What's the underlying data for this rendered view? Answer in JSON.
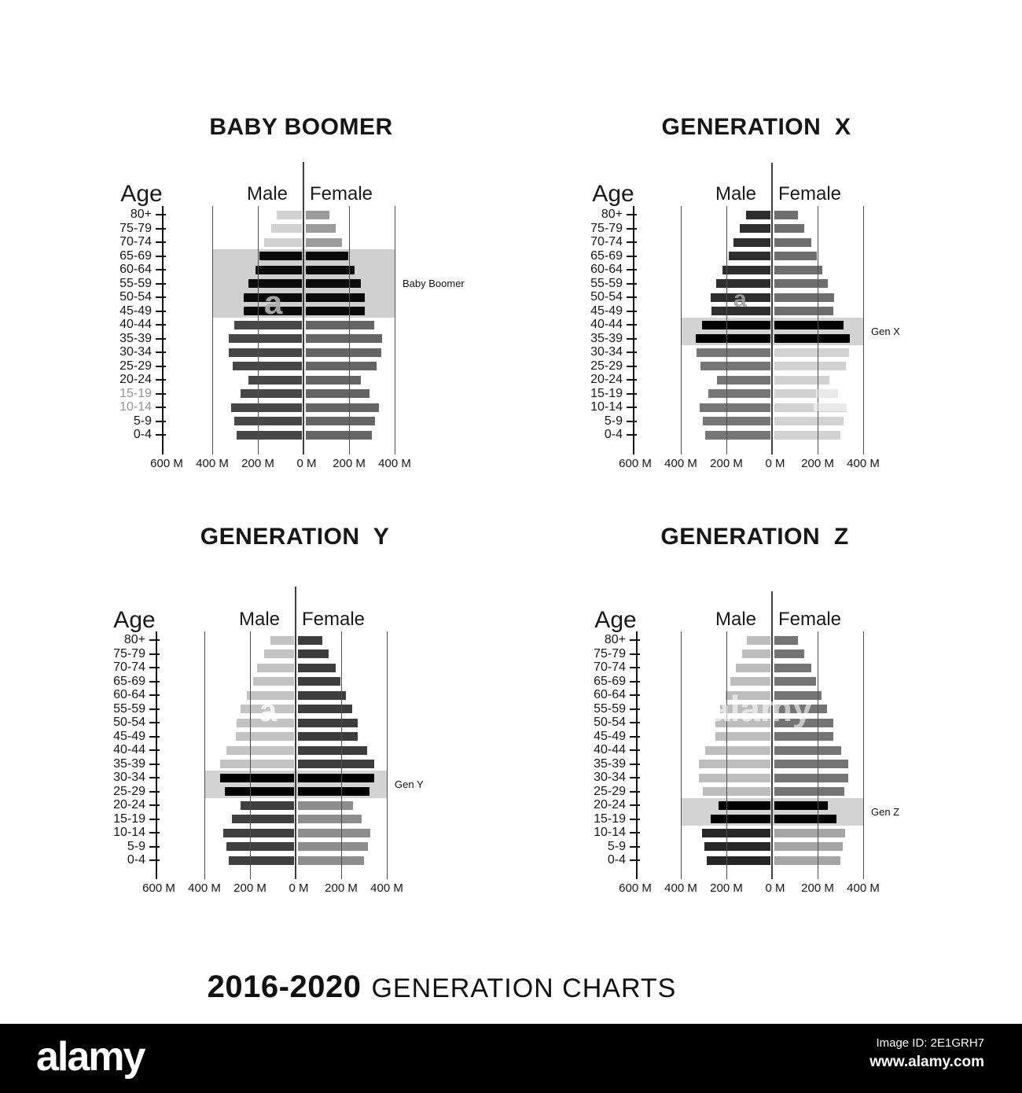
{
  "caption": {
    "years": "2016-2020",
    "title": "GENERATION CHARTS"
  },
  "footer": {
    "brand": "alamy",
    "image_id": "Image ID: 2E1GRH7",
    "url": "www.alamy.com"
  },
  "watermark": {
    "letter": "a",
    "word": "alamy"
  },
  "chart_data": [
    {
      "type": "bar",
      "variant": "population-pyramid",
      "title": "BABY BOOMER",
      "ylabel": "Age",
      "male_label": "Male",
      "female_label": "Female",
      "unit": "millions",
      "categories": [
        "80+",
        "75-79",
        "70-74",
        "65-69",
        "60-64",
        "55-59",
        "50-54",
        "45-49",
        "40-44",
        "35-39",
        "30-34",
        "25-29",
        "20-24",
        "15-19",
        "10-14",
        "5-9",
        "0-4"
      ],
      "series": [
        {
          "name": "Male",
          "values": [
            110,
            135,
            165,
            185,
            205,
            235,
            255,
            255,
            295,
            320,
            320,
            305,
            235,
            270,
            310,
            295,
            285
          ]
        },
        {
          "name": "Female",
          "values": [
            105,
            130,
            160,
            185,
            215,
            240,
            260,
            260,
            300,
            335,
            330,
            310,
            240,
            280,
            320,
            305,
            290
          ]
        }
      ],
      "x_tick_labels": [
        "600 M",
        "400 M",
        "200 M",
        "0 M",
        "200 M",
        "400 M"
      ],
      "x_tick_values": [
        -600,
        -400,
        -200,
        0,
        200,
        400
      ],
      "highlight": {
        "label": "Baby Boomer",
        "from": "65-69",
        "to": "45-49"
      },
      "dim_labels": [
        "15-19",
        "10-14"
      ],
      "colors": {
        "upper_male": "#d2d2d2",
        "upper_female": "#9b9b9b",
        "highlight_bar": "#0a0a0a",
        "lower_male": "#474747",
        "lower_female": "#656565",
        "band": "#cfcfcf"
      }
    },
    {
      "type": "bar",
      "variant": "population-pyramid",
      "title": "GENERATION  X",
      "ylabel": "Age",
      "male_label": "Male",
      "female_label": "Female",
      "unit": "millions",
      "categories": [
        "80+",
        "75-79",
        "70-74",
        "65-69",
        "60-64",
        "55-59",
        "50-54",
        "45-49",
        "40-44",
        "35-39",
        "30-34",
        "25-29",
        "20-24",
        "15-19",
        "10-14",
        "5-9",
        "0-4"
      ],
      "series": [
        {
          "name": "Male",
          "values": [
            108,
            133,
            161,
            184,
            209,
            237,
            261,
            257,
            299,
            326,
            325,
            306,
            234,
            272,
            310,
            295,
            286
          ]
        },
        {
          "name": "Female",
          "values": [
            105,
            131,
            162,
            186,
            211,
            236,
            262,
            258,
            302,
            332,
            328,
            313,
            241,
            279,
            317,
            304,
            291
          ]
        }
      ],
      "x_tick_labels": [
        "600 M",
        "400 M",
        "200 M",
        "0 M",
        "200 M",
        "400 M"
      ],
      "x_tick_values": [
        -600,
        -400,
        -200,
        0,
        200,
        400
      ],
      "highlight": {
        "label": "Gen X",
        "from": "40-44",
        "to": "35-39"
      },
      "dim_labels": [],
      "colors": {
        "upper_male": "#2e2e2e",
        "upper_female": "#6e6e6e",
        "highlight_bar": "#000000",
        "lower_male": "#767676",
        "lower_female": "#d2d2d2",
        "band": "#d3d3d3"
      }
    },
    {
      "type": "bar",
      "variant": "population-pyramid",
      "title": "GENERATION  Y",
      "ylabel": "Age",
      "male_label": "Male",
      "female_label": "Female",
      "unit": "millions",
      "categories": [
        "80+",
        "75-79",
        "70-74",
        "65-69",
        "60-64",
        "55-59",
        "50-54",
        "45-49",
        "40-44",
        "35-39",
        "30-34",
        "25-29",
        "20-24",
        "15-19",
        "10-14",
        "5-9",
        "0-4"
      ],
      "series": [
        {
          "name": "Male",
          "values": [
            103,
            130,
            161,
            181,
            207,
            233,
            252,
            256,
            296,
            323,
            325,
            304,
            233,
            271,
            311,
            298,
            287
          ]
        },
        {
          "name": "Female",
          "values": [
            106,
            133,
            164,
            185,
            211,
            237,
            261,
            261,
            303,
            334,
            333,
            314,
            243,
            278,
            318,
            306,
            291
          ]
        }
      ],
      "x_tick_labels": [
        "600 M",
        "400 M",
        "200 M",
        "0 M",
        "200 M",
        "400 M"
      ],
      "x_tick_values": [
        -600,
        -400,
        -200,
        0,
        200,
        400
      ],
      "highlight": {
        "label": "Gen Y",
        "from": "30-34",
        "to": "25-29"
      },
      "dim_labels": [],
      "colors": {
        "upper_male": "#c3c3c3",
        "upper_female": "#3d3d3d",
        "highlight_bar": "#000000",
        "lower_male": "#3f3f3f",
        "lower_female": "#8d8d8d",
        "band": "#d3d3d3"
      }
    },
    {
      "type": "bar",
      "variant": "population-pyramid",
      "title": "GENERATION  Z",
      "ylabel": "Age",
      "male_label": "Male",
      "female_label": "Female",
      "unit": "millions",
      "categories": [
        "80+",
        "75-79",
        "70-74",
        "65-69",
        "60-64",
        "55-59",
        "50-54",
        "45-49",
        "40-44",
        "35-39",
        "30-34",
        "25-29",
        "20-24",
        "15-19",
        "10-14",
        "5-9",
        "0-4"
      ],
      "series": [
        {
          "name": "Male",
          "values": [
            102,
            125,
            153,
            176,
            198,
            221,
            243,
            243,
            286,
            315,
            315,
            295,
            229,
            263,
            300,
            289,
            278
          ]
        },
        {
          "name": "Female",
          "values": [
            105,
            130,
            161,
            184,
            208,
            230,
            259,
            258,
            294,
            325,
            324,
            306,
            235,
            272,
            312,
            299,
            288
          ]
        }
      ],
      "x_tick_labels": [
        "600 M",
        "400 M",
        "200 M",
        "0 M",
        "200 M",
        "400 M"
      ],
      "x_tick_values": [
        -600,
        -400,
        -200,
        0,
        200,
        400
      ],
      "highlight": {
        "label": "Gen Z",
        "from": "20-24",
        "to": "15-19"
      },
      "dim_labels": [],
      "colors": {
        "upper_male": "#bdbdbd",
        "upper_female": "#747474",
        "highlight_bar": "#000000",
        "lower_male": "#262626",
        "lower_female": "#a5a5a5",
        "band": "#d3d3d3"
      }
    }
  ]
}
